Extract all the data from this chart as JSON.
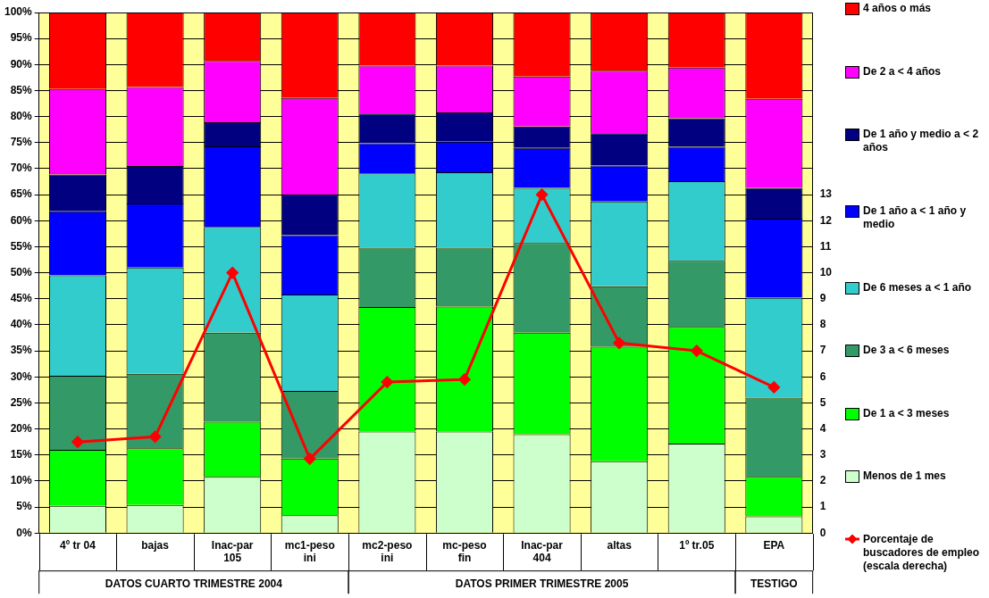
{
  "chart_data": {
    "type": "bar",
    "stacked": true,
    "categories": [
      "4º tr 04",
      "bajas",
      "Inac-par 105",
      "mc1-peso ini",
      "mc2-peso ini",
      "mc-peso fin",
      "Inac-par 404",
      "altas",
      "1º tr.05",
      "EPA"
    ],
    "series": [
      {
        "name": "Menos de 1 mes",
        "color": "#ccffcc",
        "values": [
          5.2,
          5.4,
          10.8,
          3.4,
          19.5,
          19.5,
          19.0,
          13.8,
          17.2,
          3.2
        ]
      },
      {
        "name": "De 1 a < 3 meses",
        "color": "#00ff00",
        "values": [
          10.8,
          10.9,
          10.6,
          10.9,
          23.9,
          24.0,
          19.5,
          22.0,
          22.4,
          7.6
        ]
      },
      {
        "name": "De 3 a < 6 meses",
        "color": "#339966",
        "values": [
          14.2,
          14.3,
          17.1,
          13.0,
          11.4,
          11.3,
          17.2,
          11.6,
          12.7,
          15.2
        ]
      },
      {
        "name": "De  6 meses a < 1 año",
        "color": "#33cccc",
        "values": [
          19.3,
          20.4,
          20.3,
          18.5,
          14.3,
          14.5,
          10.6,
          16.3,
          15.3,
          19.2
        ]
      },
      {
        "name": "De 1 año a < 1 año y medio",
        "color": "#0000ff",
        "values": [
          12.3,
          12.3,
          15.5,
          11.4,
          5.8,
          5.9,
          7.7,
          6.9,
          6.6,
          15.2
        ]
      },
      {
        "name": "De 1 año y medio a < 2 años",
        "color": "#000080",
        "values": [
          7.1,
          7.2,
          4.6,
          7.8,
          5.7,
          5.6,
          4.1,
          6.2,
          5.5,
          5.9
        ]
      },
      {
        "name": "De 2 a < 4 años",
        "color": "#ff00ff",
        "values": [
          16.4,
          15.2,
          11.8,
          18.6,
          9.2,
          9.0,
          9.6,
          12.0,
          9.7,
          17.1
        ]
      },
      {
        "name": "4 años o más",
        "color": "#ff0000",
        "values": [
          14.7,
          14.3,
          9.3,
          16.4,
          10.2,
          10.2,
          12.3,
          11.2,
          10.6,
          16.6
        ]
      },
      {
        "name": "Porcentaje de buscadores de empleo (escala derecha)",
        "type": "line",
        "axis": "y2",
        "color": "#ff0000",
        "values": [
          3.5,
          3.7,
          10.0,
          2.85,
          5.8,
          5.9,
          13.0,
          7.3,
          7.0,
          5.6
        ]
      }
    ],
    "ylim": [
      0,
      100
    ],
    "yticks": [
      {
        "value": 0,
        "label": "0%"
      },
      {
        "value": 5,
        "label": "5%"
      },
      {
        "value": 10,
        "label": "10%"
      },
      {
        "value": 15,
        "label": "15%"
      },
      {
        "value": 20,
        "label": "20%"
      },
      {
        "value": 25,
        "label": "25%"
      },
      {
        "value": 30,
        "label": "30%"
      },
      {
        "value": 35,
        "label": "35%"
      },
      {
        "value": 40,
        "label": "40%"
      },
      {
        "value": 45,
        "label": "45%"
      },
      {
        "value": 50,
        "label": "50%"
      },
      {
        "value": 55,
        "label": "55%"
      },
      {
        "value": 60,
        "label": "60%"
      },
      {
        "value": 65,
        "label": "65%"
      },
      {
        "value": 70,
        "label": "70%"
      },
      {
        "value": 75,
        "label": "75%"
      },
      {
        "value": 80,
        "label": "80%"
      },
      {
        "value": 85,
        "label": "85%"
      },
      {
        "value": 90,
        "label": "90%"
      },
      {
        "value": 95,
        "label": "95%"
      },
      {
        "value": 100,
        "label": "100%"
      }
    ],
    "y2lim": [
      0,
      20
    ],
    "y2ticks": [
      0,
      1,
      2,
      3,
      4,
      5,
      6,
      7,
      8,
      9,
      10,
      11,
      12,
      13
    ],
    "grid": "y",
    "legend": "right",
    "marker": "diamond",
    "line_style": "solid",
    "annotations": [
      "DATOS CUARTO TRIMESTRE 2004",
      "DATOS PRIMER TRIMESTRE 2005",
      "TESTIGO"
    ]
  }
}
